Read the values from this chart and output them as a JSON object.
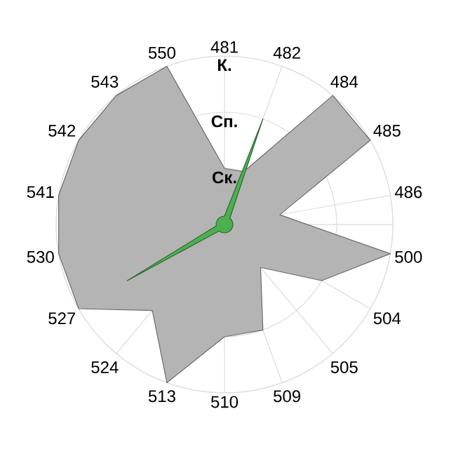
{
  "chart_data": {
    "type": "radar",
    "categories": [
      "481",
      "482",
      "484",
      "485",
      "486",
      "500",
      "504",
      "505",
      "509",
      "510",
      "513",
      "524",
      "527",
      "530",
      "541",
      "542",
      "543",
      "550"
    ],
    "ylim": [
      0,
      3
    ],
    "yticks": [
      {
        "value": 1,
        "label": "Ск."
      },
      {
        "value": 2,
        "label": "Сп."
      },
      {
        "value": 3,
        "label": "К."
      }
    ],
    "grid": true,
    "series": [
      {
        "color": "#b4b4b4",
        "values": [
          1,
          1,
          3,
          3,
          1,
          3,
          2,
          1,
          2,
          2,
          3,
          2,
          3,
          3,
          3,
          3,
          3,
          3
        ]
      },
      {
        "color": "#4caf50",
        "values": [
          0.15,
          2,
          0.15,
          0.15,
          0.15,
          0.15,
          0.15,
          0.15,
          0.15,
          0.15,
          0.15,
          0.15,
          2,
          0.15,
          0.15,
          0.15,
          0.15,
          0.15
        ]
      }
    ]
  }
}
